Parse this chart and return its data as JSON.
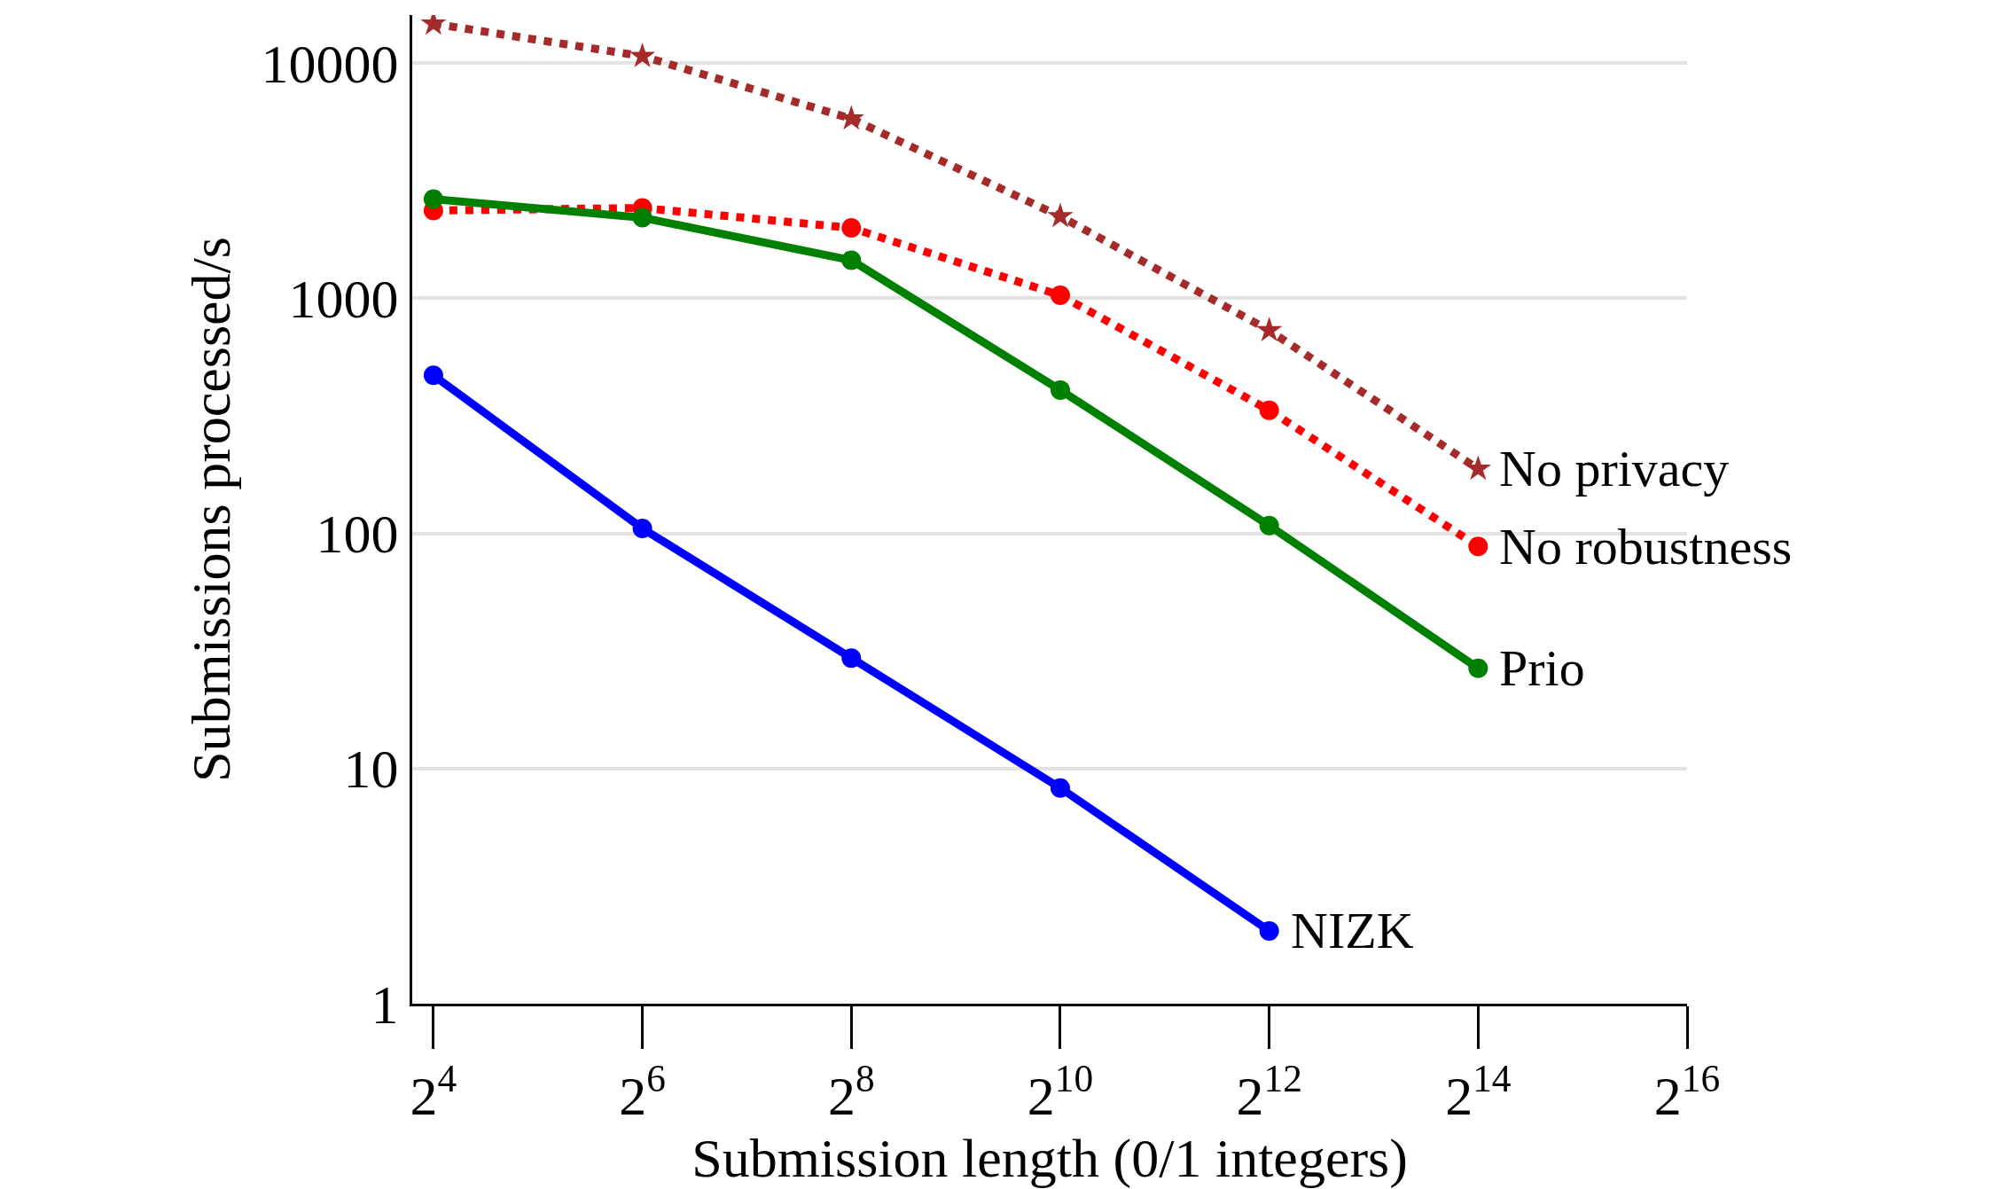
{
  "chart_data": {
    "type": "line",
    "xlabel": "Submission length (0/1 integers)",
    "ylabel": "Submissions processed/s",
    "log": "xy",
    "grid": "y",
    "legend": false,
    "x": [
      16,
      64,
      256,
      1024,
      4096,
      16384
    ],
    "xlim": [
      13.9,
      65536
    ],
    "xticks": [
      {
        "value": 16,
        "label": "2$^{4}$"
      },
      {
        "value": 64,
        "label": "2$^{6}$"
      },
      {
        "value": 256,
        "label": "2$^{8}$"
      },
      {
        "value": 1024,
        "label": "2$^{10}$"
      },
      {
        "value": 4096,
        "label": "2$^{12}$"
      },
      {
        "value": 16384,
        "label": "2$^{14}$"
      },
      {
        "value": 65536,
        "label": "2$^{16}$"
      }
    ],
    "ylim": [
      1,
      16000
    ],
    "yticks": [
      1,
      10,
      100,
      1000,
      10000
    ],
    "series": [
      {
        "name": "No privacy",
        "color": "#a52a2a",
        "marker": "star",
        "line_style": "dotted",
        "values": [
          14700,
          10700,
          5800,
          2230,
          730,
          188
        ]
      },
      {
        "name": "No robustness",
        "color": "#ff0000",
        "marker": "circle",
        "line_style": "dotted",
        "values": [
          2360,
          2420,
          1990,
          1030,
          334,
          88
        ]
      },
      {
        "name": "Prio",
        "color": "#008000",
        "marker": "circle",
        "line_style": "solid",
        "values": [
          2640,
          2200,
          1450,
          407,
          108,
          26.7
        ]
      },
      {
        "name": "NIZK",
        "color": "#0000ff",
        "marker": "circle",
        "line_style": "solid",
        "values": [
          470,
          105,
          29.5,
          8.27,
          2.04,
          null
        ]
      }
    ]
  }
}
